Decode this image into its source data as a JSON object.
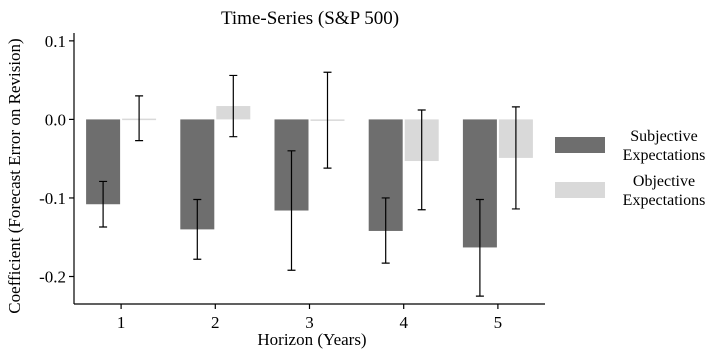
{
  "chart_data": {
    "type": "bar",
    "title": "Time-Series (S&P 500)",
    "xlabel": "Horizon (Years)",
    "ylabel": "Coefficient (Forecast Error on Revision)",
    "categories": [
      "1",
      "2",
      "3",
      "4",
      "5"
    ],
    "ylim": [
      -0.235,
      0.11
    ],
    "yticks": [
      0.1,
      0.0,
      -0.1,
      -0.2
    ],
    "ytick_labels": [
      "0.1",
      "0.0",
      "-0.1",
      "-0.2"
    ],
    "grid": false,
    "legend_position": "right",
    "series": [
      {
        "name": "Subjective Expectations",
        "legend_lines": [
          "Subjective",
          "Expectations"
        ],
        "color": "#6e6e6e",
        "values": [
          -0.108,
          -0.14,
          -0.116,
          -0.142,
          -0.163
        ],
        "err_low": [
          -0.137,
          -0.178,
          -0.192,
          -0.183,
          -0.225
        ],
        "err_high": [
          -0.079,
          -0.102,
          -0.04,
          -0.1,
          -0.102
        ]
      },
      {
        "name": "Objective Expectations",
        "legend_lines": [
          "Objective",
          "Expectations"
        ],
        "color": "#d9d9d9",
        "values": [
          0.001,
          0.017,
          -0.001,
          -0.053,
          -0.049
        ],
        "err_low": [
          -0.027,
          -0.022,
          -0.062,
          -0.115,
          -0.114
        ],
        "err_high": [
          0.03,
          0.056,
          0.06,
          0.012,
          0.016
        ]
      }
    ]
  }
}
